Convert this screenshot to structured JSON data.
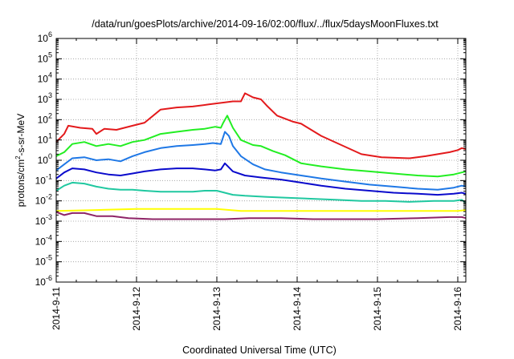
{
  "chart_data": {
    "type": "line",
    "title": "/data/run/goesPlots/archive/2014-09-16/02:00/flux/../flux/5daysMoonFluxes.txt",
    "xlabel": "Coordinated Universal Time (UTC)",
    "ylabel": {
      "main": "protons/cm",
      "sup": "2",
      "rest": "-s-sr-MeV"
    },
    "xlim": [
      0,
      5.1
    ],
    "x_tick_labels": [
      "2014-9-11",
      "2014-9-12",
      "2014-9-13",
      "2014-9-14",
      "2014-9-15",
      "2014-9-16"
    ],
    "y_scale": "log",
    "ylim_exp": [
      -6,
      6
    ],
    "y_tick_base": "10",
    "grid": true,
    "legend": "none",
    "x_unit": "days since 2014-9-11 00:00 UTC",
    "series": [
      {
        "color": "#e31a1c",
        "points": [
          [
            0,
            0.9
          ],
          [
            0.1,
            1.3
          ],
          [
            0.15,
            1.7
          ],
          [
            0.3,
            1.6
          ],
          [
            0.45,
            1.55
          ],
          [
            0.5,
            1.3
          ],
          [
            0.6,
            1.55
          ],
          [
            0.75,
            1.5
          ],
          [
            0.95,
            1.7
          ],
          [
            1.1,
            1.85
          ],
          [
            1.3,
            2.5
          ],
          [
            1.5,
            2.6
          ],
          [
            1.7,
            2.65
          ],
          [
            1.9,
            2.75
          ],
          [
            2.2,
            2.9
          ],
          [
            2.3,
            2.9
          ],
          [
            2.35,
            3.3
          ],
          [
            2.45,
            3.1
          ],
          [
            2.55,
            3.0
          ],
          [
            2.62,
            2.7
          ],
          [
            2.75,
            2.2
          ],
          [
            2.95,
            1.9
          ],
          [
            3.05,
            1.8
          ],
          [
            3.3,
            1.2
          ],
          [
            3.55,
            0.75
          ],
          [
            3.8,
            0.3
          ],
          [
            4.05,
            0.15
          ],
          [
            4.4,
            0.1
          ],
          [
            4.6,
            0.2
          ],
          [
            4.75,
            0.3
          ],
          [
            4.9,
            0.4
          ],
          [
            5.0,
            0.5
          ],
          [
            5.05,
            0.6
          ],
          [
            5.1,
            0.55
          ]
        ]
      },
      {
        "color": "#22ee22",
        "points": [
          [
            0,
            0.2
          ],
          [
            0.1,
            0.4
          ],
          [
            0.2,
            0.8
          ],
          [
            0.35,
            0.9
          ],
          [
            0.5,
            0.7
          ],
          [
            0.65,
            0.8
          ],
          [
            0.8,
            0.7
          ],
          [
            0.95,
            0.9
          ],
          [
            1.1,
            1.0
          ],
          [
            1.3,
            1.3
          ],
          [
            1.5,
            1.4
          ],
          [
            1.7,
            1.5
          ],
          [
            1.85,
            1.55
          ],
          [
            1.98,
            1.65
          ],
          [
            2.05,
            1.6
          ],
          [
            2.08,
            1.85
          ],
          [
            2.13,
            2.2
          ],
          [
            2.2,
            1.6
          ],
          [
            2.3,
            1.0
          ],
          [
            2.45,
            0.75
          ],
          [
            2.55,
            0.7
          ],
          [
            2.7,
            0.45
          ],
          [
            2.85,
            0.25
          ],
          [
            3.05,
            -0.15
          ],
          [
            3.3,
            -0.3
          ],
          [
            3.6,
            -0.45
          ],
          [
            3.9,
            -0.55
          ],
          [
            4.2,
            -0.65
          ],
          [
            4.5,
            -0.75
          ],
          [
            4.75,
            -0.8
          ],
          [
            4.95,
            -0.7
          ],
          [
            5.05,
            -0.6
          ],
          [
            5.1,
            -0.55
          ]
        ]
      },
      {
        "color": "#1f78e6",
        "points": [
          [
            0,
            -0.5
          ],
          [
            0.1,
            -0.2
          ],
          [
            0.2,
            0.1
          ],
          [
            0.35,
            0.15
          ],
          [
            0.5,
            0.0
          ],
          [
            0.65,
            0.05
          ],
          [
            0.8,
            -0.05
          ],
          [
            0.95,
            0.2
          ],
          [
            1.1,
            0.4
          ],
          [
            1.3,
            0.6
          ],
          [
            1.5,
            0.7
          ],
          [
            1.7,
            0.75
          ],
          [
            1.85,
            0.8
          ],
          [
            1.95,
            0.85
          ],
          [
            2.05,
            0.8
          ],
          [
            2.1,
            1.4
          ],
          [
            2.15,
            1.2
          ],
          [
            2.2,
            0.7
          ],
          [
            2.3,
            0.2
          ],
          [
            2.45,
            -0.2
          ],
          [
            2.6,
            -0.45
          ],
          [
            2.8,
            -0.6
          ],
          [
            3.05,
            -0.75
          ],
          [
            3.3,
            -0.9
          ],
          [
            3.6,
            -1.05
          ],
          [
            3.9,
            -1.2
          ],
          [
            4.2,
            -1.3
          ],
          [
            4.5,
            -1.4
          ],
          [
            4.75,
            -1.45
          ],
          [
            4.95,
            -1.35
          ],
          [
            5.05,
            -1.25
          ],
          [
            5.1,
            -1.3
          ]
        ]
      },
      {
        "color": "#0a0acc",
        "points": [
          [
            0,
            -0.9
          ],
          [
            0.1,
            -0.6
          ],
          [
            0.2,
            -0.4
          ],
          [
            0.35,
            -0.45
          ],
          [
            0.5,
            -0.6
          ],
          [
            0.65,
            -0.7
          ],
          [
            0.8,
            -0.75
          ],
          [
            0.95,
            -0.65
          ],
          [
            1.1,
            -0.55
          ],
          [
            1.3,
            -0.45
          ],
          [
            1.5,
            -0.4
          ],
          [
            1.7,
            -0.4
          ],
          [
            1.85,
            -0.45
          ],
          [
            1.98,
            -0.5
          ],
          [
            2.05,
            -0.45
          ],
          [
            2.1,
            -0.15
          ],
          [
            2.2,
            -0.55
          ],
          [
            2.35,
            -0.75
          ],
          [
            2.55,
            -0.85
          ],
          [
            2.8,
            -0.95
          ],
          [
            3.05,
            -1.1
          ],
          [
            3.3,
            -1.25
          ],
          [
            3.6,
            -1.4
          ],
          [
            3.9,
            -1.5
          ],
          [
            4.2,
            -1.6
          ],
          [
            4.5,
            -1.65
          ],
          [
            4.75,
            -1.7
          ],
          [
            4.95,
            -1.65
          ],
          [
            5.05,
            -1.6
          ],
          [
            5.1,
            -1.65
          ]
        ]
      },
      {
        "color": "#20c8a0",
        "points": [
          [
            0,
            -1.5
          ],
          [
            0.1,
            -1.25
          ],
          [
            0.2,
            -1.1
          ],
          [
            0.35,
            -1.15
          ],
          [
            0.5,
            -1.3
          ],
          [
            0.65,
            -1.4
          ],
          [
            0.8,
            -1.45
          ],
          [
            0.95,
            -1.45
          ],
          [
            1.1,
            -1.5
          ],
          [
            1.3,
            -1.55
          ],
          [
            1.5,
            -1.55
          ],
          [
            1.7,
            -1.55
          ],
          [
            1.85,
            -1.5
          ],
          [
            2.0,
            -1.5
          ],
          [
            2.2,
            -1.7
          ],
          [
            2.35,
            -1.75
          ],
          [
            2.6,
            -1.8
          ],
          [
            2.9,
            -1.85
          ],
          [
            3.2,
            -1.9
          ],
          [
            3.5,
            -1.95
          ],
          [
            3.8,
            -2.0
          ],
          [
            4.1,
            -2.0
          ],
          [
            4.4,
            -2.05
          ],
          [
            4.7,
            -2.0
          ],
          [
            4.95,
            -2.0
          ],
          [
            5.05,
            -1.95
          ],
          [
            5.1,
            -2.1
          ]
        ]
      },
      {
        "color": "#ffff00",
        "points": [
          [
            0,
            -2.5
          ],
          [
            0.5,
            -2.45
          ],
          [
            1.0,
            -2.4
          ],
          [
            1.5,
            -2.4
          ],
          [
            2.0,
            -2.4
          ],
          [
            2.3,
            -2.5
          ],
          [
            2.6,
            -2.5
          ],
          [
            3.0,
            -2.5
          ],
          [
            3.5,
            -2.5
          ],
          [
            4.0,
            -2.5
          ],
          [
            4.5,
            -2.5
          ],
          [
            5.0,
            -2.5
          ],
          [
            5.1,
            -2.45
          ]
        ]
      },
      {
        "color": "#8e2467",
        "points": [
          [
            0,
            -2.55
          ],
          [
            0.1,
            -2.7
          ],
          [
            0.2,
            -2.6
          ],
          [
            0.35,
            -2.6
          ],
          [
            0.5,
            -2.75
          ],
          [
            0.7,
            -2.75
          ],
          [
            0.9,
            -2.85
          ],
          [
            1.2,
            -2.9
          ],
          [
            1.5,
            -2.9
          ],
          [
            1.8,
            -2.9
          ],
          [
            2.1,
            -2.9
          ],
          [
            2.4,
            -2.85
          ],
          [
            2.8,
            -2.85
          ],
          [
            3.2,
            -2.9
          ],
          [
            3.6,
            -2.9
          ],
          [
            4.0,
            -2.9
          ],
          [
            4.5,
            -2.85
          ],
          [
            4.9,
            -2.8
          ],
          [
            5.05,
            -2.8
          ],
          [
            5.1,
            -2.85
          ]
        ]
      }
    ]
  }
}
